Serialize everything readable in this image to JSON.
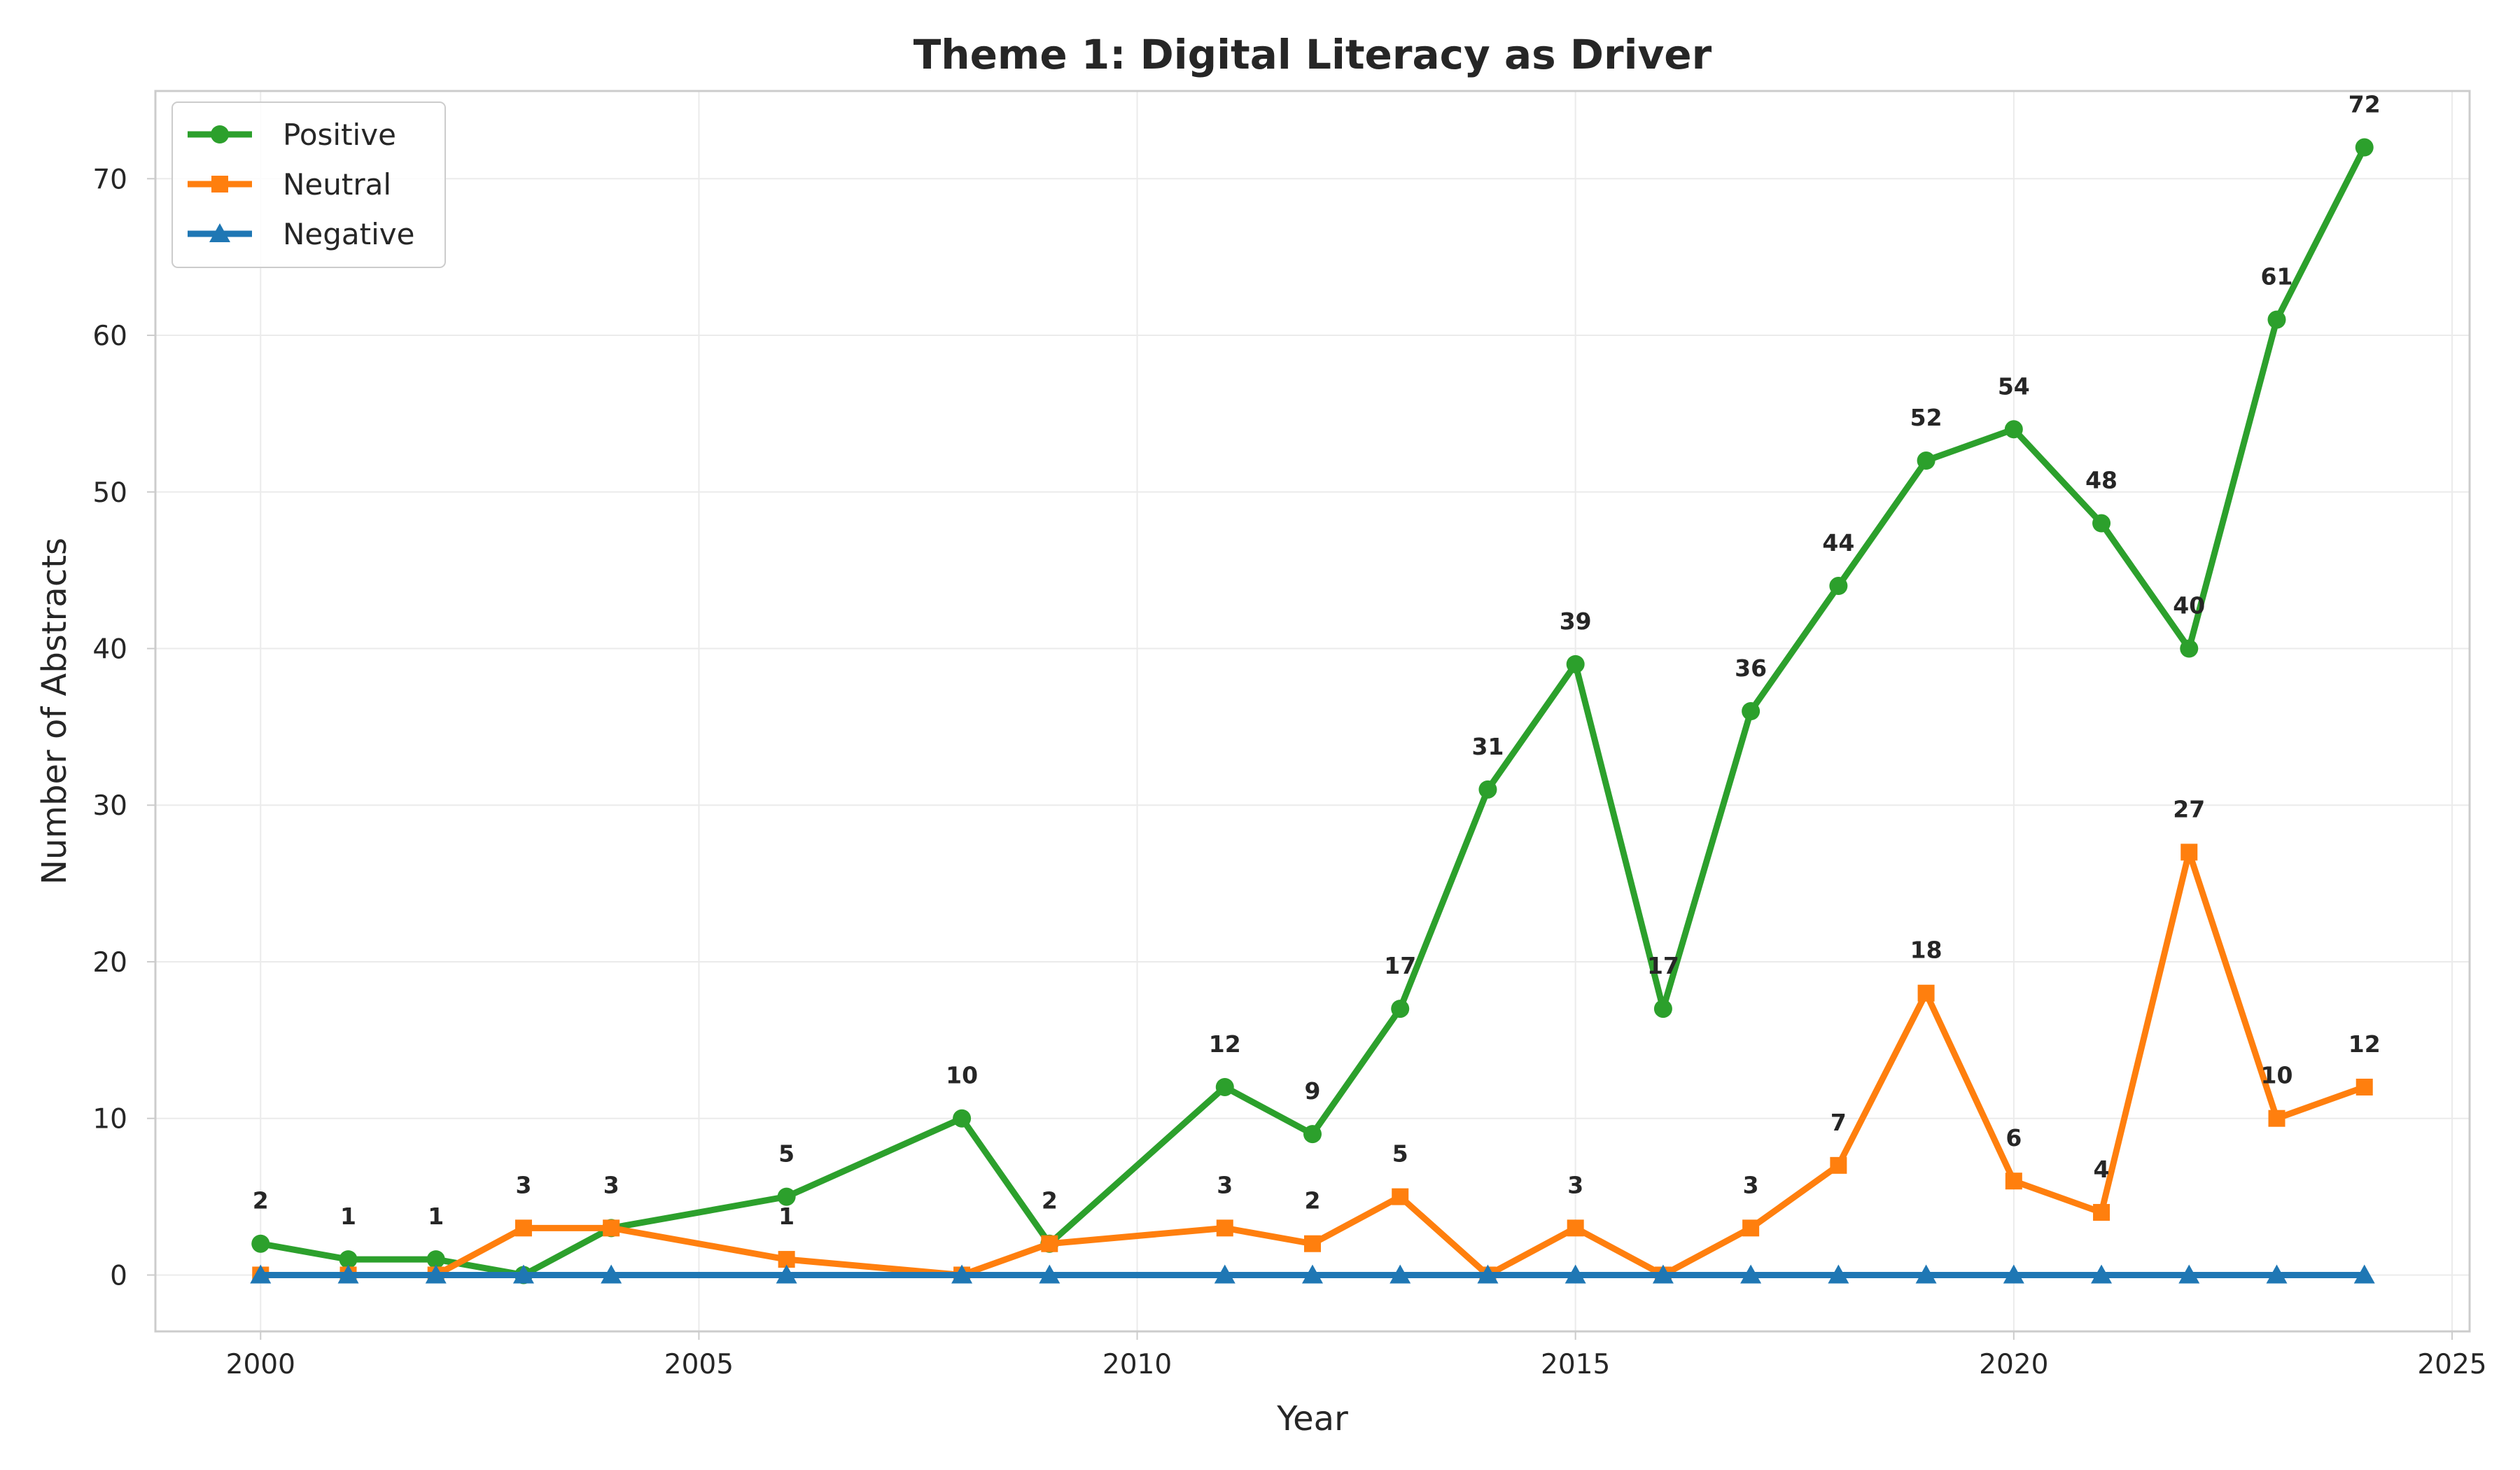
{
  "chart_data": {
    "type": "line",
    "title": "Theme 1: Digital Literacy as Driver",
    "xlabel": "Year",
    "ylabel": "Number of Abstracts",
    "xlim": [
      1998.8,
      2025.2
    ],
    "ylim": [
      -3.6,
      75.6
    ],
    "xticks": [
      2000,
      2005,
      2010,
      2015,
      2020,
      2025
    ],
    "yticks": [
      0,
      10,
      20,
      30,
      40,
      50,
      60,
      70
    ],
    "grid": true,
    "legend_position": "top-left",
    "x": [
      2000,
      2001,
      2002,
      2003,
      2004,
      2006,
      2008,
      2009,
      2011,
      2012,
      2013,
      2014,
      2015,
      2016,
      2017,
      2018,
      2019,
      2020,
      2021,
      2022,
      2023,
      2024
    ],
    "series": [
      {
        "name": "Positive",
        "color": "#2ca02c",
        "marker": "circle",
        "values": [
          2,
          1,
          1,
          0,
          3,
          5,
          10,
          2,
          12,
          9,
          17,
          31,
          39,
          17,
          36,
          44,
          52,
          54,
          48,
          40,
          61,
          72
        ],
        "labels": [
          "2",
          "1",
          "1",
          "",
          "",
          "5",
          "10",
          "",
          "12",
          "9",
          "17",
          "31",
          "39",
          "17",
          "36",
          "44",
          "52",
          "54",
          "48",
          "40",
          "61",
          "72"
        ]
      },
      {
        "name": "Neutral",
        "color": "#ff7f0e",
        "marker": "square",
        "values": [
          0,
          0,
          0,
          3,
          3,
          1,
          0,
          2,
          3,
          2,
          5,
          0,
          3,
          0,
          3,
          7,
          18,
          6,
          4,
          27,
          10,
          12
        ],
        "labels": [
          "",
          "",
          "",
          "3",
          "3",
          "1",
          "",
          "2",
          "3",
          "2",
          "5",
          "",
          "3",
          "",
          "3",
          "7",
          "18",
          "6",
          "4",
          "27",
          "10",
          "12"
        ]
      },
      {
        "name": "Negative",
        "color": "#1f77b4",
        "marker": "triangle",
        "values": [
          0,
          0,
          0,
          0,
          0,
          0,
          0,
          0,
          0,
          0,
          0,
          0,
          0,
          0,
          0,
          0,
          0,
          0,
          0,
          0,
          0,
          0
        ],
        "labels": [
          "",
          "",
          "",
          "",
          "",
          "",
          "",
          "",
          "",
          "",
          "",
          "",
          "",
          "",
          "",
          "",
          "",
          "",
          "",
          "",
          "",
          ""
        ]
      }
    ]
  }
}
